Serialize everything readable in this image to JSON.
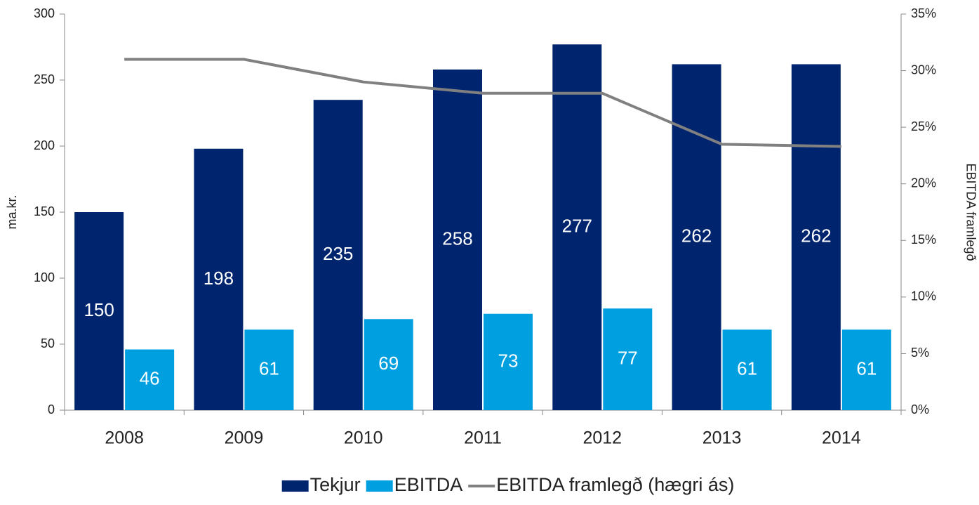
{
  "chart_data": {
    "type": "bar",
    "categories": [
      "2008",
      "2009",
      "2010",
      "2011",
      "2012",
      "2013",
      "2014"
    ],
    "series": [
      {
        "name": "Tekjur",
        "type": "bar",
        "color": "#00256e",
        "values": [
          150,
          198,
          235,
          258,
          277,
          262,
          262
        ]
      },
      {
        "name": "EBITDA",
        "type": "bar",
        "color": "#00a0e0",
        "values": [
          46,
          61,
          69,
          73,
          77,
          61,
          61
        ]
      },
      {
        "name": "EBITDA framlegð (hægri ás)",
        "type": "line",
        "axis": "y2",
        "color": "#808080",
        "values": [
          31,
          31,
          29,
          28,
          28,
          23.5,
          23.3
        ]
      }
    ],
    "ylabel": "ma.kr.",
    "y2label": "EBITDA framlegð",
    "ylim": [
      0,
      300
    ],
    "yticks": [
      0,
      50,
      100,
      150,
      200,
      250,
      300
    ],
    "y2lim": [
      0,
      35
    ],
    "y2ticks": [
      {
        "value": 0,
        "label": "0%"
      },
      {
        "value": 5,
        "label": "5%"
      },
      {
        "value": 10,
        "label": "10%"
      },
      {
        "value": 15,
        "label": "15%"
      },
      {
        "value": 20,
        "label": "20%"
      },
      {
        "value": 25,
        "label": "25%"
      },
      {
        "value": 30,
        "label": "30%"
      },
      {
        "value": 35,
        "label": "35%"
      }
    ],
    "legend": "bottom"
  }
}
